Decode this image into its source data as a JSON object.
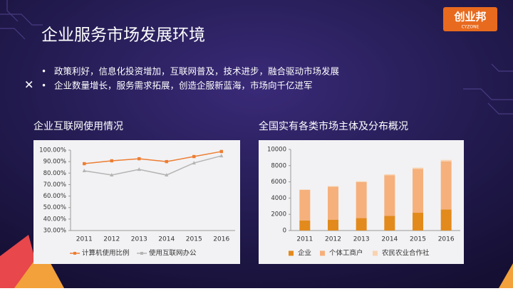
{
  "slide": {
    "title": "企业服务市场发展环境",
    "bullets": [
      "政策利好，信息化投资增加，互联网普及，技术进步，融合驱动市场发展",
      "企业数量增长，服务需求拓展，创造企服新蓝海，市场向千亿进军"
    ],
    "logo": "创业邦",
    "logo_sub": "CYZONE"
  },
  "chart_data": [
    {
      "type": "line",
      "title": "企业互联网使用情况",
      "categories": [
        "2011",
        "2012",
        "2013",
        "2014",
        "2015",
        "2016"
      ],
      "series": [
        {
          "name": "计算机使用比例",
          "color": "#ed7d31",
          "marker": "square",
          "values": [
            88.2,
            90.7,
            92.5,
            90,
            94.4,
            98.8
          ]
        },
        {
          "name": "使用互联网办公",
          "color": "#b4b4b4",
          "marker": "triangle",
          "values": [
            82,
            78.3,
            83.2,
            78.3,
            88.8,
            95
          ]
        }
      ],
      "ylim": [
        30,
        100
      ],
      "yticks": [
        {
          "value": 30,
          "label": "30.00%"
        },
        {
          "value": 40,
          "label": "40.00%"
        },
        {
          "value": 50,
          "label": "50.00%"
        },
        {
          "value": 60,
          "label": "60.00%"
        },
        {
          "value": 70,
          "label": "70.00%"
        },
        {
          "value": 80,
          "label": "80.00%"
        },
        {
          "value": 90,
          "label": "90.00%"
        },
        {
          "value": 100,
          "label": "100.00%"
        }
      ],
      "grid": false,
      "legend": "bottom"
    },
    {
      "type": "stacked-bar",
      "title": "全国实有各类市场主体及分布概况",
      "categories": [
        "2011",
        "2012",
        "2013",
        "2014",
        "2015",
        "2016"
      ],
      "series": [
        {
          "name": "企业",
          "color": "#e38a1c",
          "values": [
            1250,
            1340,
            1530,
            1820,
            2190,
            2600
          ]
        },
        {
          "name": "个体工商户",
          "color": "#f6b07c",
          "values": [
            3760,
            4060,
            4440,
            4980,
            5410,
            5930
          ]
        },
        {
          "name": "农民农业合作社",
          "color": "#f9d3b0",
          "values": [
            50,
            70,
            100,
            130,
            150,
            180
          ]
        }
      ],
      "ylim": [
        0,
        10000
      ],
      "yticks": [
        0,
        2000,
        4000,
        6000,
        8000,
        10000
      ],
      "grid": false,
      "legend": "bottom"
    }
  ]
}
